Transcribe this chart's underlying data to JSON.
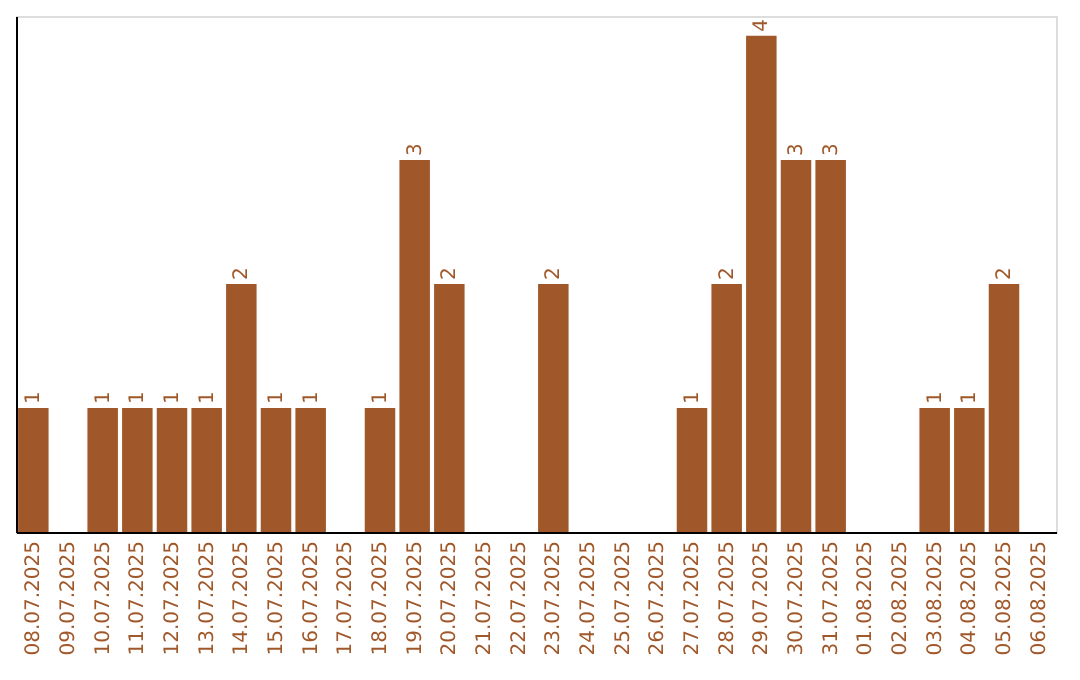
{
  "chart_data": {
    "type": "bar",
    "categories": [
      "08.07.2025",
      "09.07.2025",
      "10.07.2025",
      "11.07.2025",
      "12.07.2025",
      "13.07.2025",
      "14.07.2025",
      "15.07.2025",
      "16.07.2025",
      "17.07.2025",
      "18.07.2025",
      "19.07.2025",
      "20.07.2025",
      "21.07.2025",
      "22.07.2025",
      "23.07.2025",
      "24.07.2025",
      "25.07.2025",
      "26.07.2025",
      "27.07.2025",
      "28.07.2025",
      "29.07.2025",
      "30.07.2025",
      "31.07.2025",
      "01.08.2025",
      "02.08.2025",
      "03.08.2025",
      "04.08.2025",
      "05.08.2025",
      "06.08.2025"
    ],
    "values": [
      1,
      0,
      1,
      1,
      1,
      1,
      2,
      1,
      1,
      0,
      1,
      3,
      2,
      0,
      0,
      2,
      0,
      0,
      0,
      1,
      2,
      4,
      3,
      3,
      0,
      0,
      1,
      1,
      2,
      0
    ],
    "value_labels": [
      "1",
      null,
      "1",
      "1",
      "1",
      "1",
      "2",
      "1",
      "1",
      null,
      "1",
      "3",
      "2",
      null,
      null,
      "2",
      null,
      null,
      null,
      "1",
      "2",
      "4",
      "3",
      "3",
      null,
      null,
      "1",
      "1",
      "2",
      null
    ],
    "color": "#a0582a",
    "tick_labels": "x",
    "grid": false
  }
}
